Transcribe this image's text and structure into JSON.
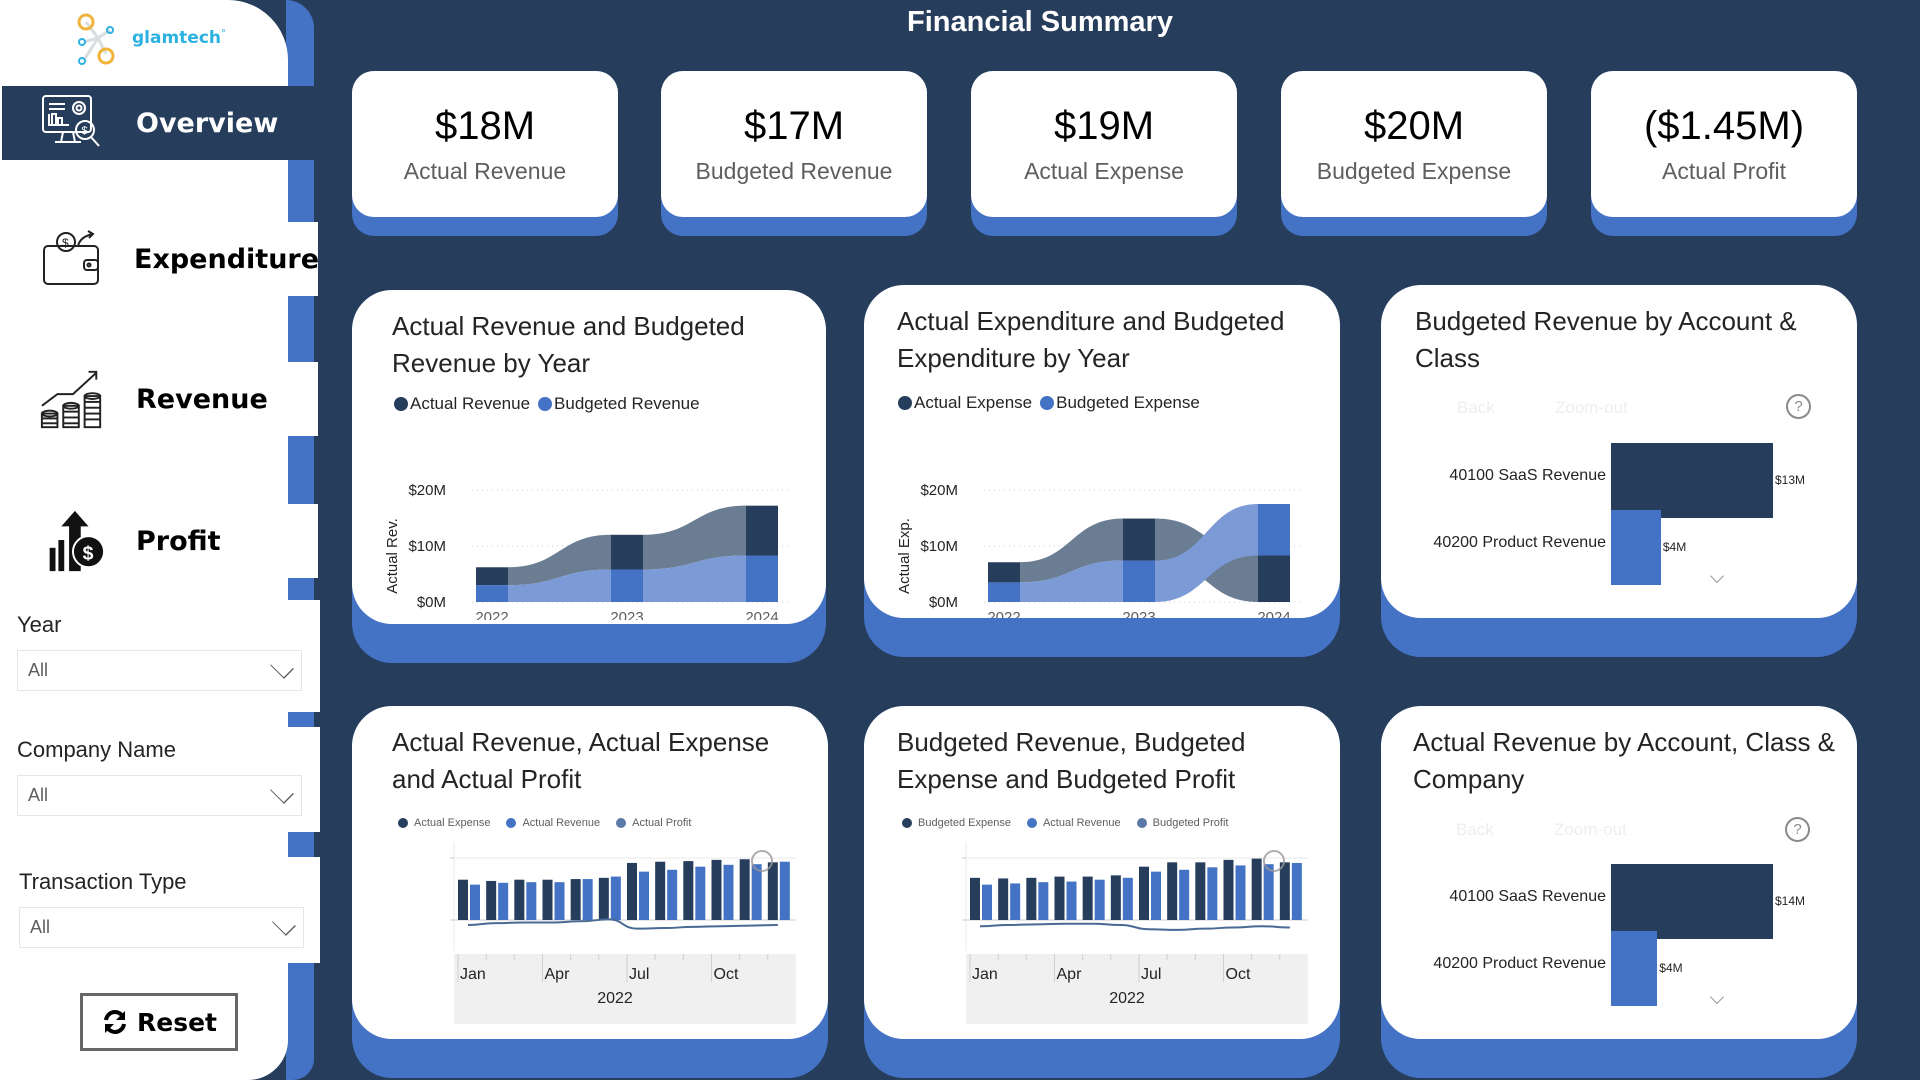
{
  "brand": {
    "name": "glamtech",
    "mark": "°"
  },
  "header": {
    "title": "Financial Summary"
  },
  "sidebar": {
    "nav": [
      {
        "label": "Overview",
        "icon": "monitor-analytics-icon",
        "active": true
      },
      {
        "label": "Expenditure",
        "icon": "wallet-icon",
        "active": false
      },
      {
        "label": "Revenue",
        "icon": "coins-growth-icon",
        "active": false
      },
      {
        "label": "Profit",
        "icon": "profit-chart-icon",
        "active": false
      }
    ],
    "filters": [
      {
        "label": "Year",
        "value": "All"
      },
      {
        "label": "Company Name",
        "value": "All"
      },
      {
        "label": "Transaction Type",
        "value": "All"
      }
    ],
    "reset_label": "Reset"
  },
  "kpis": [
    {
      "value": "$18M",
      "label": "Actual Revenue"
    },
    {
      "value": "$17M",
      "label": "Budgeted Revenue"
    },
    {
      "value": "$19M",
      "label": "Actual Expense"
    },
    {
      "value": "$20M",
      "label": "Budgeted Expense"
    },
    {
      "value": "($1.45M)",
      "label": "Actual Profit"
    }
  ],
  "colors": {
    "background": "#263d5c",
    "accent": "#4472c4",
    "dark_series": "#263d5c",
    "light_series": "#4472c4",
    "ribbon_dark": "#6b7d93",
    "ribbon_light": "#7c9bd6",
    "profit_line": "#4a6a94"
  },
  "drill": {
    "back": "Back",
    "zoom_out": "Zoom-out",
    "help": "?"
  },
  "chart_data": [
    {
      "id": "rev-by-year",
      "type": "ribbon",
      "title": "Actual Revenue and Budgeted Revenue by Year",
      "legend": [
        "Actual Revenue",
        "Budgeted Revenue"
      ],
      "ylabel": "Actual Rev.",
      "yticks": [
        "$0M",
        "$10M",
        "$20M"
      ],
      "ylim": [
        0,
        20
      ],
      "categories": [
        "2022",
        "2023",
        "2024"
      ],
      "series": [
        {
          "name": "Actual Revenue",
          "values": [
            3.2,
            6.2,
            8.9
          ]
        },
        {
          "name": "Budgeted Revenue",
          "values": [
            3.0,
            5.8,
            8.3
          ]
        }
      ],
      "stack_order": [
        [
          "Budgeted Revenue",
          "Actual Revenue"
        ],
        [
          "Budgeted Revenue",
          "Actual Revenue"
        ],
        [
          "Budgeted Revenue",
          "Actual Revenue"
        ]
      ]
    },
    {
      "id": "exp-by-year",
      "type": "ribbon",
      "title": "Actual Expenditure and Budgeted Expenditure by Year",
      "legend": [
        "Actual Expense",
        "Budgeted Expense"
      ],
      "ylabel": "Actual Exp.",
      "yticks": [
        "$0M",
        "$10M",
        "$20M"
      ],
      "ylim": [
        0,
        20
      ],
      "categories": [
        "2022",
        "2023",
        "2024"
      ],
      "series": [
        {
          "name": "Actual Expense",
          "values": [
            3.6,
            7.5,
            8.3
          ]
        },
        {
          "name": "Budgeted Expense",
          "values": [
            3.5,
            7.4,
            9.2
          ]
        }
      ],
      "stack_order": [
        [
          "Budgeted Expense",
          "Actual Expense"
        ],
        [
          "Budgeted Expense",
          "Actual Expense"
        ],
        [
          "Actual Expense",
          "Budgeted Expense"
        ]
      ]
    },
    {
      "id": "budget-rev-account",
      "type": "bar",
      "orientation": "horizontal",
      "title": "Budgeted Revenue by Account & Class",
      "categories": [
        "40100 SaaS Revenue",
        "40200 Product Revenue"
      ],
      "values": [
        13,
        4
      ],
      "labels": [
        "$13M",
        "$4M"
      ]
    },
    {
      "id": "actual-rev-exp-profit",
      "type": "bar",
      "title": "Actual Revenue, Actual Expense and Actual Profit",
      "legend": [
        "Actual Expense",
        "Actual Revenue",
        "Actual Profit"
      ],
      "x_ticks": [
        "Jan",
        "Apr",
        "Jul",
        "Oct"
      ],
      "x_group": "2022",
      "categories": [
        "Jan",
        "Feb",
        "Mar",
        "Apr",
        "May",
        "Jun",
        "Jul",
        "Aug",
        "Sep",
        "Oct",
        "Nov",
        "Dec"
      ],
      "series": [
        {
          "name": "Actual Expense",
          "values": [
            0.65,
            0.63,
            0.65,
            0.65,
            0.66,
            0.68,
            0.92,
            0.94,
            0.95,
            0.97,
            0.98,
            0.93
          ]
        },
        {
          "name": "Actual Revenue",
          "values": [
            0.57,
            0.6,
            0.61,
            0.61,
            0.66,
            0.7,
            0.78,
            0.81,
            0.86,
            0.89,
            0.9,
            0.94
          ]
        },
        {
          "name": "Actual Profit",
          "type": "line",
          "values": [
            -0.08,
            -0.05,
            -0.04,
            -0.04,
            -0.02,
            0.01,
            -0.14,
            -0.13,
            -0.11,
            -0.1,
            -0.09,
            -0.08
          ]
        }
      ]
    },
    {
      "id": "budget-rev-exp-profit",
      "type": "bar",
      "title": "Budgeted Revenue, Budgeted Expense and Budgeted Profit",
      "legend": [
        "Budgeted Expense",
        "Actual Revenue",
        "Budgeted Profit"
      ],
      "x_ticks": [
        "Jan",
        "Apr",
        "Jul",
        "Oct"
      ],
      "x_group": "2022",
      "categories": [
        "Jan",
        "Feb",
        "Mar",
        "Apr",
        "May",
        "Jun",
        "Jul",
        "Aug",
        "Sep",
        "Oct",
        "Nov",
        "Dec"
      ],
      "series": [
        {
          "name": "Budgeted Expense",
          "values": [
            0.68,
            0.67,
            0.68,
            0.7,
            0.7,
            0.72,
            0.86,
            0.93,
            0.93,
            0.97,
            0.99,
            0.93
          ]
        },
        {
          "name": "Actual Revenue",
          "values": [
            0.57,
            0.59,
            0.61,
            0.62,
            0.65,
            0.68,
            0.78,
            0.81,
            0.85,
            0.88,
            0.9,
            0.92
          ]
        },
        {
          "name": "Budgeted Profit",
          "type": "line",
          "values": [
            -0.1,
            -0.08,
            -0.07,
            -0.06,
            -0.06,
            -0.08,
            -0.15,
            -0.16,
            -0.14,
            -0.12,
            -0.1,
            -0.12
          ]
        }
      ]
    },
    {
      "id": "actual-rev-account",
      "type": "bar",
      "orientation": "horizontal",
      "title": "Actual Revenue by Account, Class & Company",
      "categories": [
        "40100 SaaS Revenue",
        "40200 Product Revenue"
      ],
      "values": [
        14,
        4
      ],
      "labels": [
        "$14M",
        "$4M"
      ]
    }
  ]
}
